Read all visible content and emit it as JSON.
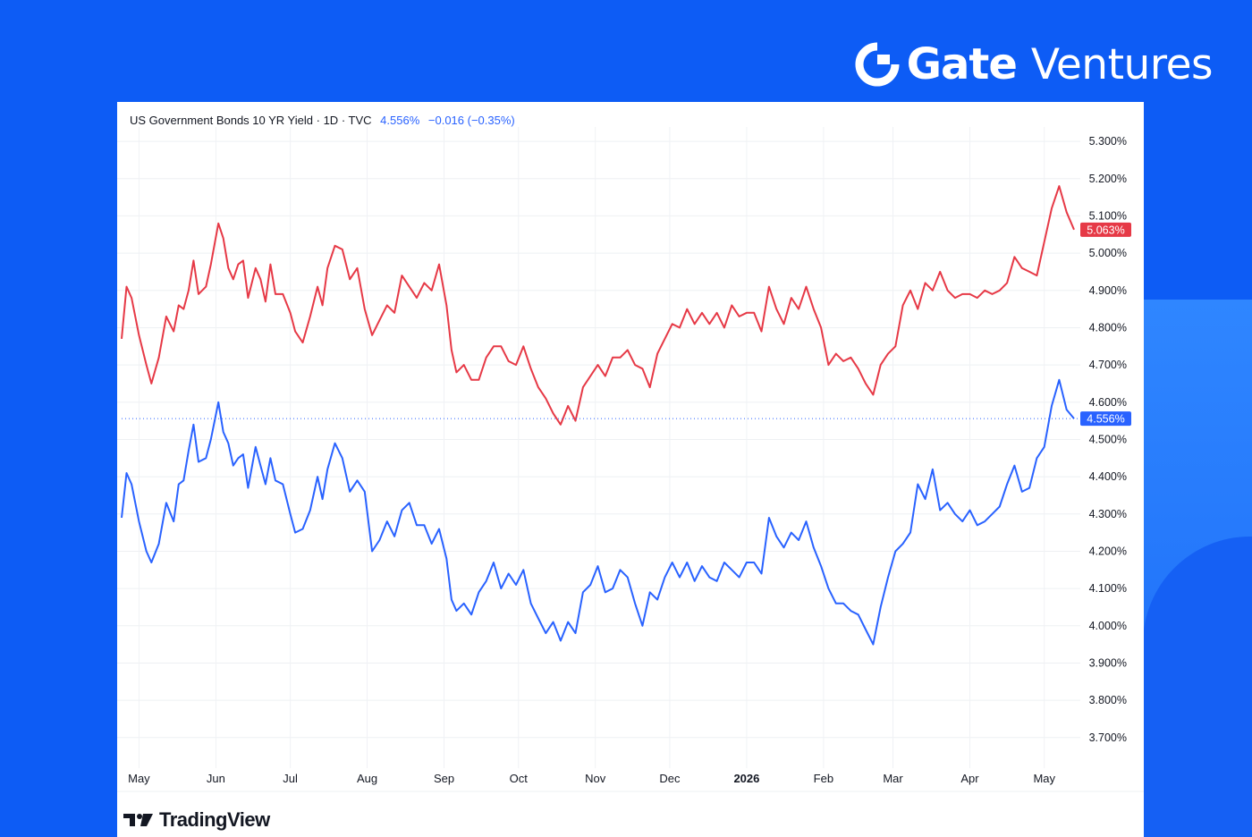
{
  "brand": {
    "name_bold": "Gate",
    "name_light": "Ventures",
    "logo_icon": "gate-logo-icon"
  },
  "header": {
    "symbol": "US Government Bonds 10 YR Yield",
    "interval": "1D",
    "source": "TVC",
    "last_value": "4.556%",
    "change": "−0.016 (−0.35%)"
  },
  "footer": {
    "tradingview_label": "TradingView"
  },
  "colors": {
    "series_30y": "#e63946",
    "series_10y": "#2962ff",
    "background": "#0d5cf5"
  },
  "chart_data": {
    "type": "line",
    "x_labels": [
      "May",
      "Jun",
      "Jul",
      "Aug",
      "Sep",
      "Oct",
      "Nov",
      "Dec",
      "2026",
      "Feb",
      "Mar",
      "Apr",
      "May"
    ],
    "y_ticks": [
      "5.300%",
      "5.200%",
      "5.100%",
      "5.000%",
      "4.900%",
      "4.800%",
      "4.700%",
      "4.600%",
      "4.500%",
      "4.400%",
      "4.300%",
      "4.200%",
      "4.100%",
      "4.000%",
      "3.900%",
      "3.800%",
      "3.700%"
    ],
    "ylim": [
      3.65,
      5.35
    ],
    "grid": true,
    "series": [
      {
        "label": "5.063%",
        "color": "#e63946",
        "anchors": [
          [
            "2025-04-24",
            4.77
          ],
          [
            "2025-04-26",
            4.91
          ],
          [
            "2025-04-28",
            4.88
          ],
          [
            "2025-05-01",
            4.78
          ],
          [
            "2025-05-04",
            4.7
          ],
          [
            "2025-05-06",
            4.65
          ],
          [
            "2025-05-09",
            4.72
          ],
          [
            "2025-05-12",
            4.83
          ],
          [
            "2025-05-15",
            4.79
          ],
          [
            "2025-05-17",
            4.86
          ],
          [
            "2025-05-19",
            4.85
          ],
          [
            "2025-05-21",
            4.9
          ],
          [
            "2025-05-23",
            4.98
          ],
          [
            "2025-05-25",
            4.89
          ],
          [
            "2025-05-28",
            4.91
          ],
          [
            "2025-05-30",
            4.97
          ],
          [
            "2025-06-02",
            5.08
          ],
          [
            "2025-06-04",
            5.04
          ],
          [
            "2025-06-06",
            4.96
          ],
          [
            "2025-06-08",
            4.93
          ],
          [
            "2025-06-10",
            4.97
          ],
          [
            "2025-06-12",
            4.98
          ],
          [
            "2025-06-14",
            4.88
          ],
          [
            "2025-06-17",
            4.96
          ],
          [
            "2025-06-19",
            4.93
          ],
          [
            "2025-06-21",
            4.87
          ],
          [
            "2025-06-23",
            4.97
          ],
          [
            "2025-06-25",
            4.89
          ],
          [
            "2025-06-28",
            4.89
          ],
          [
            "2025-07-01",
            4.84
          ],
          [
            "2025-07-03",
            4.79
          ],
          [
            "2025-07-06",
            4.76
          ],
          [
            "2025-07-09",
            4.83
          ],
          [
            "2025-07-12",
            4.91
          ],
          [
            "2025-07-14",
            4.86
          ],
          [
            "2025-07-16",
            4.96
          ],
          [
            "2025-07-19",
            5.02
          ],
          [
            "2025-07-22",
            5.01
          ],
          [
            "2025-07-25",
            4.93
          ],
          [
            "2025-07-28",
            4.96
          ],
          [
            "2025-07-31",
            4.85
          ],
          [
            "2025-08-03",
            4.78
          ],
          [
            "2025-08-06",
            4.82
          ],
          [
            "2025-08-09",
            4.86
          ],
          [
            "2025-08-12",
            4.84
          ],
          [
            "2025-08-15",
            4.94
          ],
          [
            "2025-08-18",
            4.91
          ],
          [
            "2025-08-21",
            4.88
          ],
          [
            "2025-08-24",
            4.92
          ],
          [
            "2025-08-27",
            4.9
          ],
          [
            "2025-08-30",
            4.97
          ],
          [
            "2025-09-02",
            4.86
          ],
          [
            "2025-09-04",
            4.74
          ],
          [
            "2025-09-06",
            4.68
          ],
          [
            "2025-09-09",
            4.7
          ],
          [
            "2025-09-12",
            4.66
          ],
          [
            "2025-09-15",
            4.66
          ],
          [
            "2025-09-18",
            4.72
          ],
          [
            "2025-09-21",
            4.75
          ],
          [
            "2025-09-24",
            4.75
          ],
          [
            "2025-09-27",
            4.71
          ],
          [
            "2025-09-30",
            4.7
          ],
          [
            "2025-10-03",
            4.75
          ],
          [
            "2025-10-06",
            4.69
          ],
          [
            "2025-10-09",
            4.64
          ],
          [
            "2025-10-12",
            4.61
          ],
          [
            "2025-10-15",
            4.57
          ],
          [
            "2025-10-18",
            4.54
          ],
          [
            "2025-10-21",
            4.59
          ],
          [
            "2025-10-24",
            4.55
          ],
          [
            "2025-10-27",
            4.64
          ],
          [
            "2025-10-30",
            4.67
          ],
          [
            "2025-11-02",
            4.7
          ],
          [
            "2025-11-05",
            4.67
          ],
          [
            "2025-11-08",
            4.72
          ],
          [
            "2025-11-11",
            4.72
          ],
          [
            "2025-11-14",
            4.74
          ],
          [
            "2025-11-17",
            4.7
          ],
          [
            "2025-11-20",
            4.69
          ],
          [
            "2025-11-23",
            4.64
          ],
          [
            "2025-11-26",
            4.73
          ],
          [
            "2025-11-29",
            4.77
          ],
          [
            "2025-12-02",
            4.81
          ],
          [
            "2025-12-05",
            4.8
          ],
          [
            "2025-12-08",
            4.85
          ],
          [
            "2025-12-11",
            4.81
          ],
          [
            "2025-12-14",
            4.84
          ],
          [
            "2025-12-17",
            4.81
          ],
          [
            "2025-12-20",
            4.84
          ],
          [
            "2025-12-23",
            4.8
          ],
          [
            "2025-12-26",
            4.86
          ],
          [
            "2025-12-29",
            4.83
          ],
          [
            "2026-01-01",
            4.84
          ],
          [
            "2026-01-04",
            4.84
          ],
          [
            "2026-01-07",
            4.79
          ],
          [
            "2026-01-10",
            4.91
          ],
          [
            "2026-01-13",
            4.85
          ],
          [
            "2026-01-16",
            4.81
          ],
          [
            "2026-01-19",
            4.88
          ],
          [
            "2026-01-22",
            4.85
          ],
          [
            "2026-01-25",
            4.91
          ],
          [
            "2026-01-28",
            4.85
          ],
          [
            "2026-01-31",
            4.8
          ],
          [
            "2026-02-03",
            4.7
          ],
          [
            "2026-02-06",
            4.73
          ],
          [
            "2026-02-09",
            4.71
          ],
          [
            "2026-02-12",
            4.72
          ],
          [
            "2026-02-15",
            4.69
          ],
          [
            "2026-02-18",
            4.65
          ],
          [
            "2026-02-21",
            4.62
          ],
          [
            "2026-02-24",
            4.7
          ],
          [
            "2026-02-27",
            4.73
          ],
          [
            "2026-03-02",
            4.75
          ],
          [
            "2026-03-05",
            4.86
          ],
          [
            "2026-03-08",
            4.9
          ],
          [
            "2026-03-11",
            4.85
          ],
          [
            "2026-03-14",
            4.92
          ],
          [
            "2026-03-17",
            4.9
          ],
          [
            "2026-03-20",
            4.95
          ],
          [
            "2026-03-23",
            4.9
          ],
          [
            "2026-03-26",
            4.88
          ],
          [
            "2026-03-29",
            4.89
          ],
          [
            "2026-04-01",
            4.89
          ],
          [
            "2026-04-04",
            4.88
          ],
          [
            "2026-04-07",
            4.9
          ],
          [
            "2026-04-10",
            4.89
          ],
          [
            "2026-04-13",
            4.9
          ],
          [
            "2026-04-16",
            4.92
          ],
          [
            "2026-04-19",
            4.99
          ],
          [
            "2026-04-22",
            4.96
          ],
          [
            "2026-04-25",
            4.95
          ],
          [
            "2026-04-28",
            4.94
          ],
          [
            "2026-05-01",
            5.03
          ],
          [
            "2026-05-04",
            5.12
          ],
          [
            "2026-05-07",
            5.18
          ],
          [
            "2026-05-10",
            5.11
          ],
          [
            "2026-05-13",
            5.063
          ]
        ]
      },
      {
        "label": "4.556%",
        "color": "#2962ff",
        "anchors": [
          [
            "2025-04-24",
            4.29
          ],
          [
            "2025-04-26",
            4.41
          ],
          [
            "2025-04-28",
            4.38
          ],
          [
            "2025-05-01",
            4.28
          ],
          [
            "2025-05-04",
            4.2
          ],
          [
            "2025-05-06",
            4.17
          ],
          [
            "2025-05-09",
            4.22
          ],
          [
            "2025-05-12",
            4.33
          ],
          [
            "2025-05-15",
            4.28
          ],
          [
            "2025-05-17",
            4.38
          ],
          [
            "2025-05-19",
            4.39
          ],
          [
            "2025-05-21",
            4.47
          ],
          [
            "2025-05-23",
            4.54
          ],
          [
            "2025-05-25",
            4.44
          ],
          [
            "2025-05-28",
            4.45
          ],
          [
            "2025-05-30",
            4.5
          ],
          [
            "2025-06-02",
            4.6
          ],
          [
            "2025-06-04",
            4.52
          ],
          [
            "2025-06-06",
            4.49
          ],
          [
            "2025-06-08",
            4.43
          ],
          [
            "2025-06-10",
            4.45
          ],
          [
            "2025-06-12",
            4.46
          ],
          [
            "2025-06-14",
            4.37
          ],
          [
            "2025-06-17",
            4.48
          ],
          [
            "2025-06-19",
            4.43
          ],
          [
            "2025-06-21",
            4.38
          ],
          [
            "2025-06-23",
            4.45
          ],
          [
            "2025-06-25",
            4.39
          ],
          [
            "2025-06-28",
            4.38
          ],
          [
            "2025-07-01",
            4.3
          ],
          [
            "2025-07-03",
            4.25
          ],
          [
            "2025-07-06",
            4.26
          ],
          [
            "2025-07-09",
            4.31
          ],
          [
            "2025-07-12",
            4.4
          ],
          [
            "2025-07-14",
            4.34
          ],
          [
            "2025-07-16",
            4.42
          ],
          [
            "2025-07-19",
            4.49
          ],
          [
            "2025-07-22",
            4.45
          ],
          [
            "2025-07-25",
            4.36
          ],
          [
            "2025-07-28",
            4.39
          ],
          [
            "2025-07-31",
            4.36
          ],
          [
            "2025-08-03",
            4.2
          ],
          [
            "2025-08-06",
            4.23
          ],
          [
            "2025-08-09",
            4.28
          ],
          [
            "2025-08-12",
            4.24
          ],
          [
            "2025-08-15",
            4.31
          ],
          [
            "2025-08-18",
            4.33
          ],
          [
            "2025-08-21",
            4.27
          ],
          [
            "2025-08-24",
            4.27
          ],
          [
            "2025-08-27",
            4.22
          ],
          [
            "2025-08-30",
            4.26
          ],
          [
            "2025-09-02",
            4.18
          ],
          [
            "2025-09-04",
            4.07
          ],
          [
            "2025-09-06",
            4.04
          ],
          [
            "2025-09-09",
            4.06
          ],
          [
            "2025-09-12",
            4.03
          ],
          [
            "2025-09-15",
            4.09
          ],
          [
            "2025-09-18",
            4.12
          ],
          [
            "2025-09-21",
            4.17
          ],
          [
            "2025-09-24",
            4.1
          ],
          [
            "2025-09-27",
            4.14
          ],
          [
            "2025-09-30",
            4.11
          ],
          [
            "2025-10-03",
            4.15
          ],
          [
            "2025-10-06",
            4.06
          ],
          [
            "2025-10-09",
            4.02
          ],
          [
            "2025-10-12",
            3.98
          ],
          [
            "2025-10-15",
            4.01
          ],
          [
            "2025-10-18",
            3.96
          ],
          [
            "2025-10-21",
            4.01
          ],
          [
            "2025-10-24",
            3.98
          ],
          [
            "2025-10-27",
            4.09
          ],
          [
            "2025-10-30",
            4.11
          ],
          [
            "2025-11-02",
            4.16
          ],
          [
            "2025-11-05",
            4.09
          ],
          [
            "2025-11-08",
            4.1
          ],
          [
            "2025-11-11",
            4.15
          ],
          [
            "2025-11-14",
            4.13
          ],
          [
            "2025-11-17",
            4.06
          ],
          [
            "2025-11-20",
            4.0
          ],
          [
            "2025-11-23",
            4.09
          ],
          [
            "2025-11-26",
            4.07
          ],
          [
            "2025-11-29",
            4.13
          ],
          [
            "2025-12-02",
            4.17
          ],
          [
            "2025-12-05",
            4.13
          ],
          [
            "2025-12-08",
            4.17
          ],
          [
            "2025-12-11",
            4.12
          ],
          [
            "2025-12-14",
            4.16
          ],
          [
            "2025-12-17",
            4.13
          ],
          [
            "2025-12-20",
            4.12
          ],
          [
            "2025-12-23",
            4.17
          ],
          [
            "2025-12-26",
            4.15
          ],
          [
            "2025-12-29",
            4.13
          ],
          [
            "2026-01-01",
            4.17
          ],
          [
            "2026-01-04",
            4.17
          ],
          [
            "2026-01-07",
            4.14
          ],
          [
            "2026-01-10",
            4.29
          ],
          [
            "2026-01-13",
            4.24
          ],
          [
            "2026-01-16",
            4.21
          ],
          [
            "2026-01-19",
            4.25
          ],
          [
            "2026-01-22",
            4.23
          ],
          [
            "2026-01-25",
            4.28
          ],
          [
            "2026-01-28",
            4.21
          ],
          [
            "2026-01-31",
            4.16
          ],
          [
            "2026-02-03",
            4.1
          ],
          [
            "2026-02-06",
            4.06
          ],
          [
            "2026-02-09",
            4.06
          ],
          [
            "2026-02-12",
            4.04
          ],
          [
            "2026-02-15",
            4.03
          ],
          [
            "2026-02-18",
            3.99
          ],
          [
            "2026-02-21",
            3.95
          ],
          [
            "2026-02-24",
            4.05
          ],
          [
            "2026-02-27",
            4.13
          ],
          [
            "2026-03-02",
            4.2
          ],
          [
            "2026-03-05",
            4.22
          ],
          [
            "2026-03-08",
            4.25
          ],
          [
            "2026-03-11",
            4.38
          ],
          [
            "2026-03-14",
            4.34
          ],
          [
            "2026-03-17",
            4.42
          ],
          [
            "2026-03-20",
            4.31
          ],
          [
            "2026-03-23",
            4.33
          ],
          [
            "2026-03-26",
            4.3
          ],
          [
            "2026-03-29",
            4.28
          ],
          [
            "2026-04-01",
            4.31
          ],
          [
            "2026-04-04",
            4.27
          ],
          [
            "2026-04-07",
            4.28
          ],
          [
            "2026-04-10",
            4.3
          ],
          [
            "2026-04-13",
            4.32
          ],
          [
            "2026-04-16",
            4.38
          ],
          [
            "2026-04-19",
            4.43
          ],
          [
            "2026-04-22",
            4.36
          ],
          [
            "2026-04-25",
            4.37
          ],
          [
            "2026-04-28",
            4.45
          ],
          [
            "2026-05-01",
            4.48
          ],
          [
            "2026-05-04",
            4.59
          ],
          [
            "2026-05-07",
            4.66
          ],
          [
            "2026-05-10",
            4.58
          ],
          [
            "2026-05-13",
            4.556
          ]
        ]
      }
    ]
  }
}
